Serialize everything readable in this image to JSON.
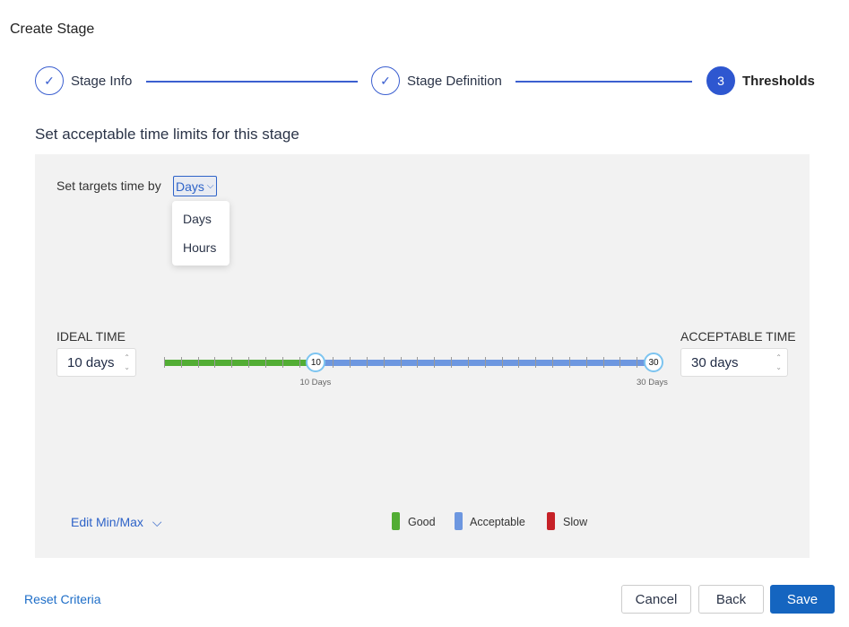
{
  "title": "Create Stage",
  "steps": [
    {
      "label": "Stage Info",
      "state": "complete",
      "icon": "check-icon"
    },
    {
      "label": "Stage Definition",
      "state": "complete",
      "icon": "check-icon"
    },
    {
      "label": "Thresholds",
      "state": "active",
      "number": "3"
    }
  ],
  "subtitle": "Set acceptable time limits for this stage",
  "targets": {
    "label": "Set targets time by",
    "selected": "Days",
    "options": [
      "Days",
      "Hours"
    ]
  },
  "ideal": {
    "label": "IDEAL TIME",
    "value": "10 days"
  },
  "acceptable": {
    "label": "ACCEPTABLE TIME",
    "value": "30 days"
  },
  "slider": {
    "min": 1,
    "max": 30,
    "ideal": 10,
    "acceptable": 30,
    "ideal_handle": "10",
    "acceptable_handle": "30",
    "ideal_caption": "10 Days",
    "acceptable_caption": "30 Days"
  },
  "edit_minmax": "Edit Min/Max",
  "legend": [
    {
      "label": "Good",
      "color": "#52ad34"
    },
    {
      "label": "Acceptable",
      "color": "#6d97e0"
    },
    {
      "label": "Slow",
      "color": "#c62127"
    }
  ],
  "footer": {
    "reset": "Reset Criteria",
    "cancel": "Cancel",
    "back": "Back",
    "save": "Save"
  }
}
